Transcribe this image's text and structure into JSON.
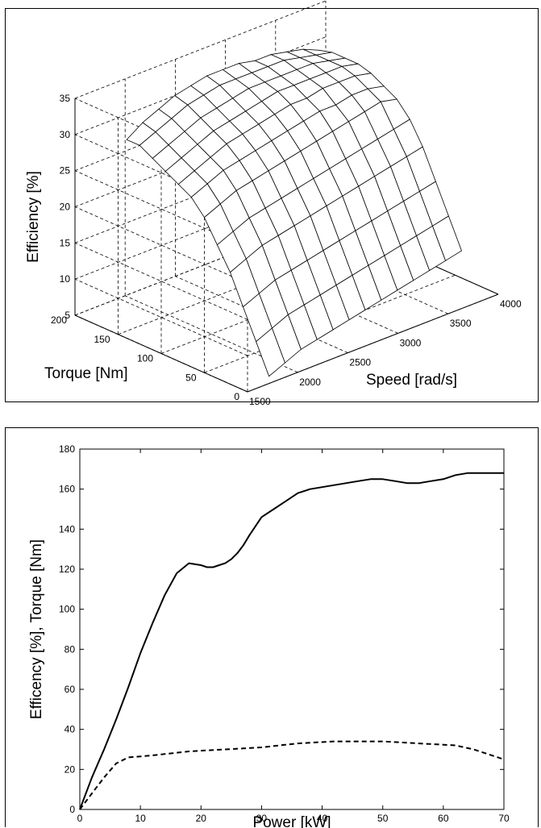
{
  "chart_data": [
    {
      "type": "surface",
      "xlabel": "Speed [rad/s]",
      "ylabel": "Torque [Nm]",
      "zlabel": "Efficiency [%]",
      "x_ticks": [
        1500,
        2000,
        2500,
        3000,
        3500,
        4000
      ],
      "y_ticks": [
        0,
        50,
        100,
        150,
        200
      ],
      "z_ticks": [
        5,
        10,
        15,
        20,
        25,
        30,
        35
      ],
      "xlim": [
        1500,
        4000
      ],
      "ylim": [
        0,
        200
      ],
      "zlim": [
        5,
        35
      ],
      "grid": true,
      "speed_grid": [
        1800,
        1960,
        2120,
        2280,
        2440,
        2600,
        2760,
        2920,
        3080,
        3240,
        3400,
        3560,
        3720
      ],
      "torque_grid": [
        10,
        25,
        40,
        55,
        70,
        85,
        100,
        115,
        130,
        145,
        160,
        175
      ],
      "efficiency": [
        [
          5,
          6,
          7,
          7.5,
          8,
          8.5,
          9,
          9.5,
          10,
          10.5,
          11,
          11.5,
          12
        ],
        [
          9,
          10,
          11,
          11.5,
          12,
          12.5,
          13,
          13.5,
          14,
          14.5,
          15,
          15.5,
          16
        ],
        [
          13,
          14,
          15,
          15.5,
          16,
          16.5,
          17,
          17.5,
          18,
          18.5,
          19,
          19.5,
          20
        ],
        [
          17,
          18,
          19,
          19.5,
          20,
          20.5,
          21,
          21.5,
          22,
          22.5,
          23,
          23.5,
          24
        ],
        [
          20,
          21,
          22,
          22.5,
          23,
          23.5,
          24,
          24.5,
          25,
          25.5,
          26,
          26.5,
          27
        ],
        [
          23,
          24,
          25,
          25.5,
          26,
          26.5,
          27,
          27.5,
          28,
          28.5,
          29,
          29.5,
          29
        ],
        [
          25,
          26,
          27,
          27.5,
          28,
          28.5,
          29,
          29.5,
          30,
          30,
          30.5,
          30.5,
          30
        ],
        [
          26,
          27,
          28,
          29,
          29.5,
          30,
          30.5,
          31,
          31,
          31.5,
          31.5,
          31.5,
          31
        ],
        [
          27,
          28,
          29,
          30,
          30.5,
          31,
          31.5,
          32,
          32,
          32,
          32,
          32,
          31.5
        ],
        [
          28,
          29,
          30,
          31,
          31.5,
          32,
          32.5,
          32.5,
          32.5,
          32.5,
          32.5,
          32,
          31.5
        ],
        [
          29,
          30,
          31,
          32,
          32.5,
          33,
          33,
          33,
          33,
          33,
          32.5,
          32,
          31.5
        ],
        [
          29,
          30.5,
          31.5,
          32.5,
          33,
          33.5,
          33.5,
          33.5,
          33,
          33,
          32.5,
          32,
          31
        ]
      ]
    },
    {
      "type": "line",
      "xlabel": "Power [kW]",
      "ylabel": "Efficency [%], Torque [Nm]",
      "xlim": [
        0,
        70
      ],
      "ylim": [
        0,
        180
      ],
      "x_ticks": [
        0,
        10,
        20,
        30,
        40,
        50,
        60,
        70
      ],
      "y_ticks": [
        0,
        20,
        40,
        60,
        80,
        100,
        120,
        140,
        160,
        180
      ],
      "grid": false,
      "series": [
        {
          "style": "solid",
          "x": [
            0,
            2,
            4,
            6,
            8,
            10,
            12,
            14,
            16,
            18,
            20,
            21,
            22,
            23,
            24,
            25,
            26,
            27,
            28,
            30,
            32,
            34,
            36,
            38,
            40,
            42,
            44,
            46,
            48,
            50,
            52,
            54,
            56,
            58,
            60,
            62,
            64,
            66,
            68,
            70
          ],
          "y": [
            0,
            16,
            30,
            45,
            61,
            78,
            93,
            107,
            118,
            123,
            122,
            121,
            121,
            122,
            123,
            125,
            128,
            132,
            137,
            146,
            150,
            154,
            158,
            160,
            161,
            162,
            163,
            164,
            165,
            165,
            164,
            163,
            163,
            164,
            165,
            167,
            168,
            168,
            168,
            168
          ]
        },
        {
          "style": "dashed",
          "x": [
            0,
            2,
            4,
            6,
            8,
            10,
            12,
            15,
            18,
            21,
            24,
            27,
            30,
            33,
            36,
            39,
            42,
            45,
            48,
            50,
            53,
            56,
            59,
            62,
            65,
            68,
            70
          ],
          "y": [
            0,
            8,
            16,
            23,
            26,
            26.5,
            27,
            28,
            29,
            29.5,
            30,
            30.5,
            31,
            32,
            33,
            33.5,
            34,
            34,
            34,
            34,
            33.5,
            33,
            32.5,
            32,
            30,
            27,
            25
          ]
        }
      ]
    }
  ]
}
